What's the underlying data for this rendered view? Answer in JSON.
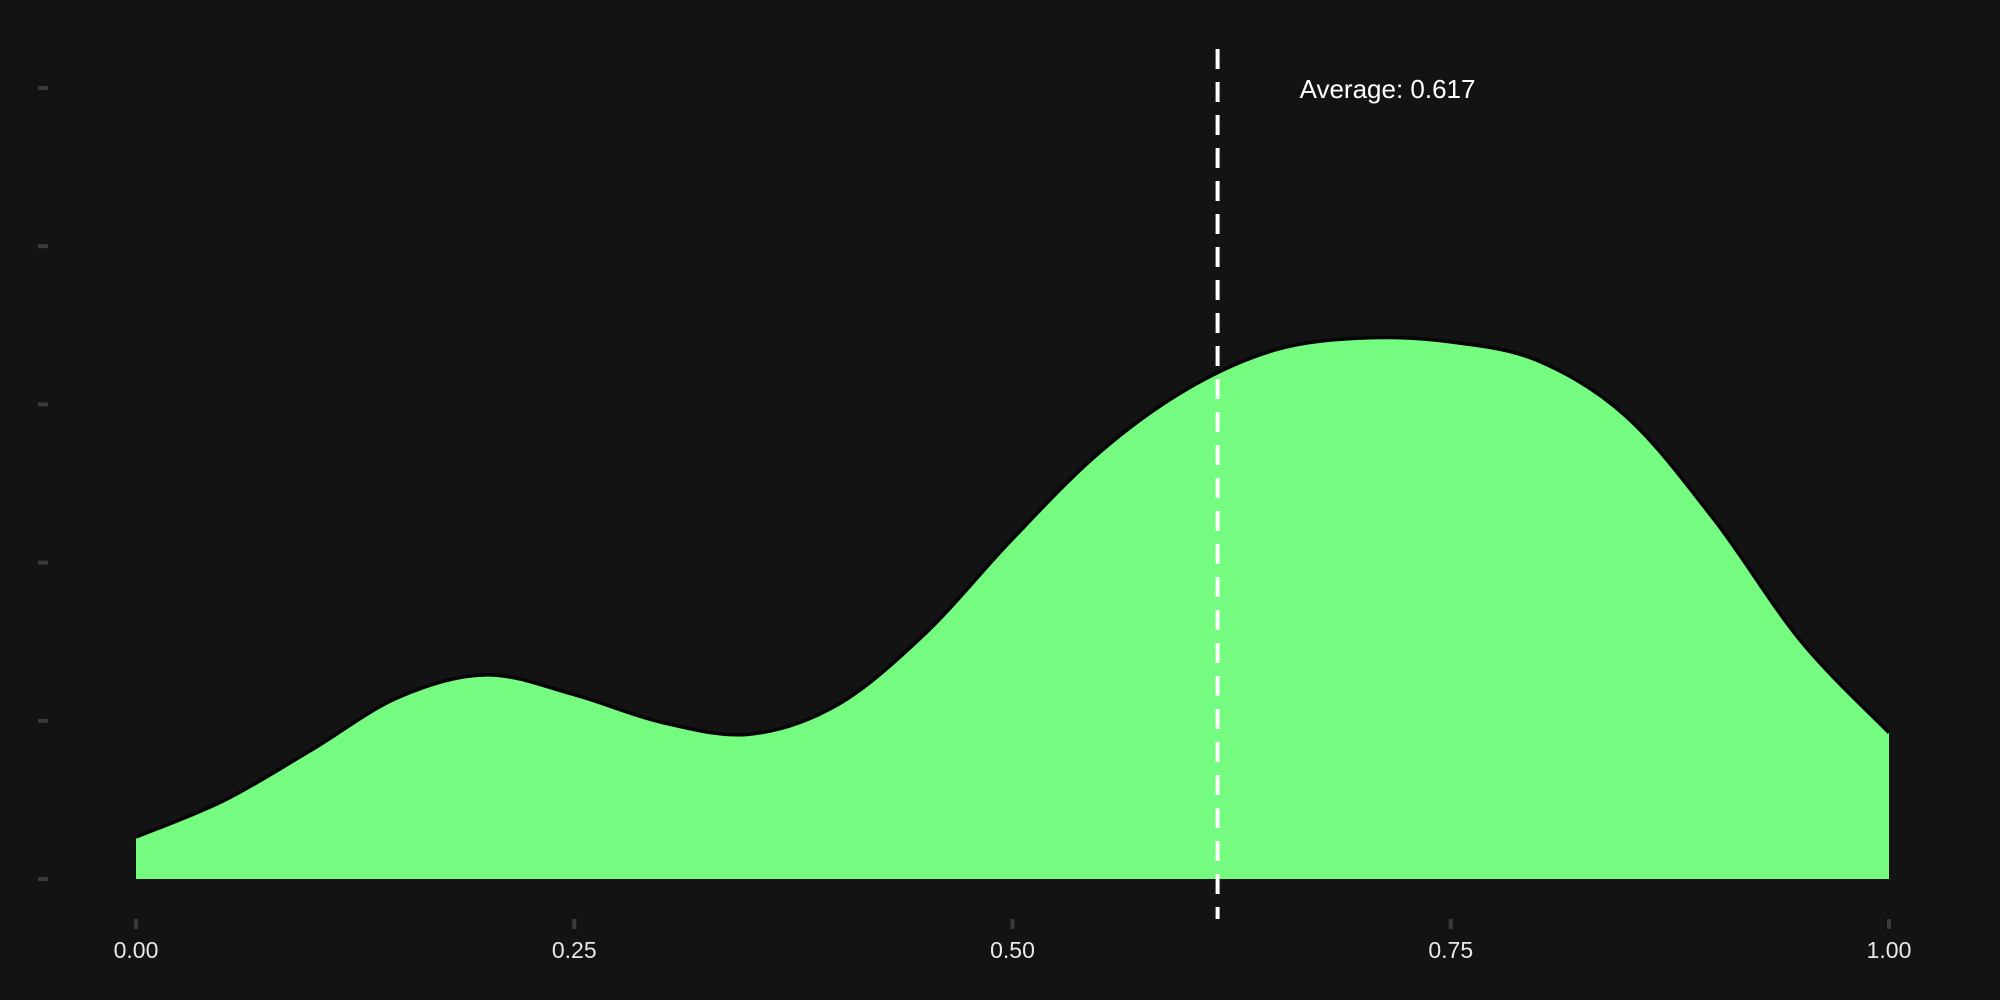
{
  "chart_data": {
    "type": "area",
    "xlim": [
      0.0,
      1.0
    ],
    "ylim": [
      0.0,
      1.0
    ],
    "x_ticks": [
      {
        "value": 0.0,
        "label": "0.00"
      },
      {
        "value": 0.25,
        "label": "0.25"
      },
      {
        "value": 0.5,
        "label": "0.50"
      },
      {
        "value": 0.75,
        "label": "0.75"
      },
      {
        "value": 1.0,
        "label": "1.00"
      }
    ],
    "y_ticks": [
      0.0,
      0.2,
      0.4,
      0.6,
      0.8,
      1.0
    ],
    "grid": false,
    "series": [
      {
        "x": [
          0.0,
          0.05,
          0.1,
          0.15,
          0.2,
          0.25,
          0.3,
          0.35,
          0.4,
          0.45,
          0.5,
          0.55,
          0.6,
          0.65,
          0.7,
          0.75,
          0.8,
          0.85,
          0.9,
          0.95,
          1.0
        ],
        "y": [
          0.053,
          0.099,
          0.163,
          0.23,
          0.258,
          0.233,
          0.198,
          0.183,
          0.22,
          0.31,
          0.43,
          0.54,
          0.62,
          0.669,
          0.684,
          0.679,
          0.655,
          0.585,
          0.455,
          0.3,
          0.185
        ]
      }
    ],
    "annotations": [
      {
        "type": "vline",
        "x": 0.617,
        "text": "Average: 0.617"
      }
    ],
    "colors": {
      "background": "#131314",
      "fill": "#74fb80",
      "outline": "#050505",
      "vline": "#ffffff",
      "tick": "#3a3a3a",
      "text": "#e8e8e8"
    }
  }
}
